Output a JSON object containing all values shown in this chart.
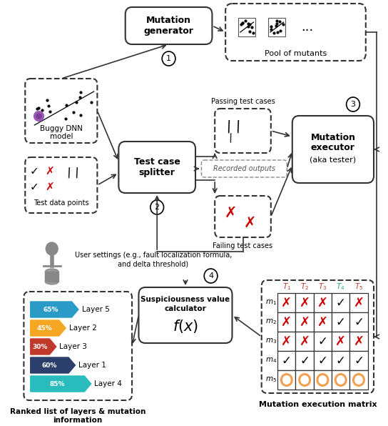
{
  "bg_color": "#ffffff",
  "bar_colors": [
    "#2a9ac7",
    "#f5a623",
    "#c0392b",
    "#2c3e6b",
    "#2abcbc"
  ],
  "bar_labels": [
    "65%",
    "45%",
    "30%",
    "60%",
    "85%"
  ],
  "layer_labels": [
    "Layer 5",
    "Layer 2",
    "Layer 3",
    "Layer 1",
    "Layer 4"
  ],
  "pct_values": [
    65,
    45,
    30,
    60,
    85
  ],
  "matrix_data": [
    [
      "x",
      "x",
      "x",
      "v",
      "x"
    ],
    [
      "x",
      "x",
      "x",
      "v",
      "v"
    ],
    [
      "x",
      "x",
      "v",
      "x",
      "x"
    ],
    [
      "v",
      "v",
      "v",
      "v",
      "v"
    ],
    [
      "o",
      "o",
      "o",
      "o",
      "o"
    ]
  ],
  "matrix_row_labels": [
    "m1",
    "m2",
    "m3",
    "m4",
    "m5"
  ],
  "matrix_col_labels": [
    "T1",
    "T2",
    "T3",
    "T4",
    "T5"
  ],
  "matrix_col_colors": [
    "#c0392b",
    "#c0392b",
    "#c0392b",
    "#27ae60",
    "#c0392b"
  ]
}
